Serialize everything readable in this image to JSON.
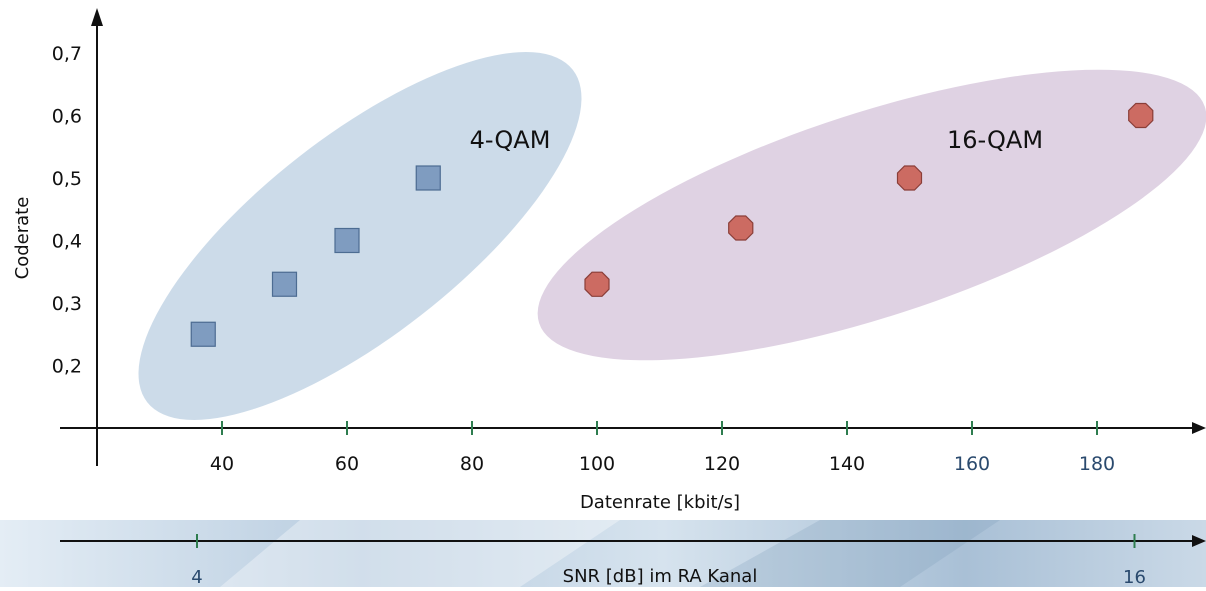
{
  "chart_data": {
    "type": "scatter",
    "ylabel": "Coderate",
    "xlabel": "Datenrate [kbit/s]",
    "x_ticks": [
      40,
      60,
      80,
      100,
      120,
      140,
      160,
      180
    ],
    "y_ticks": [
      0.2,
      0.3,
      0.4,
      0.5,
      0.6,
      0.7
    ],
    "y_tick_labels": [
      "0,2",
      "0,3",
      "0,4",
      "0,5",
      "0,6",
      "0,7"
    ],
    "xlim": [
      20,
      196
    ],
    "ylim": [
      0.1,
      0.76
    ],
    "grid": false,
    "series": [
      {
        "name": "4-QAM",
        "marker": "square",
        "color": "#7f9cc0",
        "points": [
          {
            "x": 37,
            "y": 0.25
          },
          {
            "x": 50,
            "y": 0.33
          },
          {
            "x": 60,
            "y": 0.4
          },
          {
            "x": 73,
            "y": 0.5
          }
        ]
      },
      {
        "name": "16-QAM",
        "marker": "octagon",
        "color": "#cc6b62",
        "points": [
          {
            "x": 100,
            "y": 0.33
          },
          {
            "x": 123,
            "y": 0.42
          },
          {
            "x": 150,
            "y": 0.5
          },
          {
            "x": 187,
            "y": 0.6
          }
        ]
      }
    ],
    "secondary_axis": {
      "label": "SNR [dB] im RA Kanal",
      "ticks": [
        {
          "label": "4",
          "at_datenrate": 36
        },
        {
          "label": "16",
          "at_datenrate": 186
        }
      ]
    }
  },
  "colors": {
    "axis": "#111111",
    "tick_mark": "#2e7d4f",
    "ellipse_4qam": "#c9d9e8",
    "ellipse_16qam": "#ddd0e2",
    "band_light": "#dce8f2",
    "band_dark": "#9db6cf"
  }
}
